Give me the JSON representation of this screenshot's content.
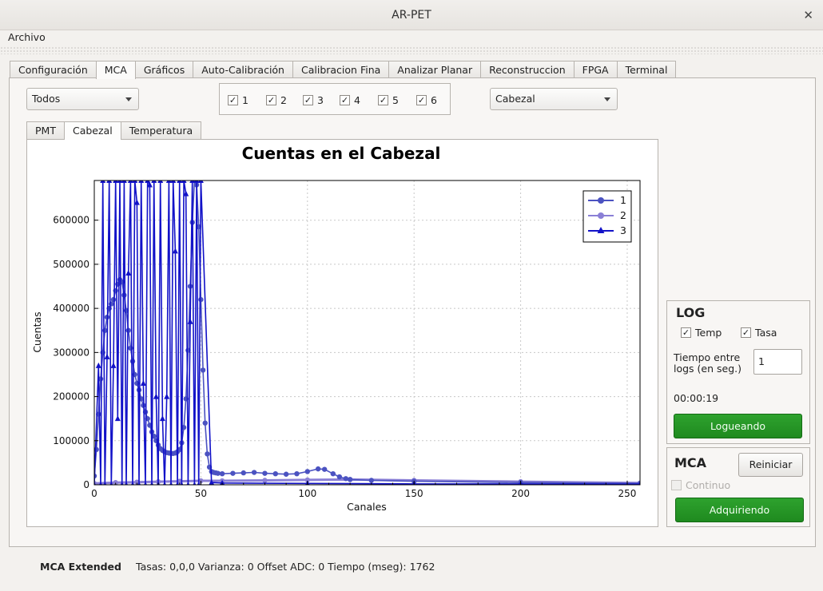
{
  "window": {
    "title": "AR-PET"
  },
  "menu": {
    "archivo": "Archivo"
  },
  "tabs": [
    "Configuración",
    "MCA",
    "Gráficos",
    "Auto-Calibración",
    "Calibracion Fina",
    "Analizar Planar",
    "Reconstruccion",
    "FPGA",
    "Terminal"
  ],
  "active_tab": "MCA",
  "controls": {
    "combo_left": "Todos",
    "combo_right": "Cabezal",
    "checks": [
      {
        "label": "1",
        "checked": true
      },
      {
        "label": "2",
        "checked": true
      },
      {
        "label": "3",
        "checked": true
      },
      {
        "label": "4",
        "checked": true
      },
      {
        "label": "5",
        "checked": true
      },
      {
        "label": "6",
        "checked": true
      }
    ]
  },
  "subtabs": [
    "PMT",
    "Cabezal",
    "Temperatura"
  ],
  "active_subtab": "Cabezal",
  "log": {
    "title": "LOG",
    "temp_label": "Temp",
    "tasa_label": "Tasa",
    "interval_label_line1": "Tiempo entre",
    "interval_label_line2": "logs (en seg.)",
    "interval_value": "1",
    "elapsed": "00:00:19",
    "button": "Logueando"
  },
  "mca": {
    "title": "MCA",
    "reset_button": "Reiniciar",
    "continuo_label": "Continuo",
    "acquire_button": "Adquiriendo"
  },
  "status": {
    "label": "MCA Extended",
    "text": "Tasas: 0,0,0 Varianza: 0 Offset ADC: 0 Tiempo (mseg): 1762"
  },
  "icons": {
    "close": "close-icon",
    "dropdown": "chevron-down-icon",
    "check": "checkmark-icon"
  },
  "colors": {
    "series1": "#4b52c1",
    "series2": "#8a7fd6",
    "series3": "#1212c8",
    "green_button": "#22922a"
  },
  "chart_data": {
    "type": "line",
    "title": "Cuentas en el Cabezal",
    "xlabel": "Canales",
    "ylabel": "Cuentas",
    "xlim": [
      0,
      256
    ],
    "ylim": [
      0,
      690000
    ],
    "x_ticks": [
      0,
      50,
      100,
      150,
      200,
      250
    ],
    "y_ticks": [
      0,
      100000,
      200000,
      300000,
      400000,
      500000,
      600000
    ],
    "grid": true,
    "legend": "top-right",
    "series": [
      {
        "name": "1",
        "marker": "circle",
        "x": [
          0,
          1,
          2,
          3,
          4,
          5,
          6,
          7,
          8,
          9,
          10,
          11,
          12,
          13,
          14,
          15,
          16,
          17,
          18,
          19,
          20,
          21,
          22,
          23,
          24,
          25,
          26,
          27,
          28,
          29,
          30,
          31,
          32,
          33,
          34,
          35,
          36,
          37,
          38,
          39,
          40,
          41,
          42,
          43,
          44,
          45,
          46,
          47,
          48,
          49,
          50,
          51,
          52,
          53,
          54,
          55,
          56,
          57,
          58,
          60,
          65,
          70,
          75,
          80,
          85,
          90,
          95,
          100,
          105,
          108,
          112,
          115,
          118,
          120,
          130,
          150,
          200,
          256
        ],
        "y": [
          20000,
          80000,
          160000,
          240000,
          300000,
          350000,
          380000,
          400000,
          410000,
          420000,
          440000,
          455000,
          465000,
          460000,
          430000,
          395000,
          350000,
          310000,
          280000,
          250000,
          230000,
          215000,
          195000,
          180000,
          165000,
          150000,
          135000,
          120000,
          110000,
          100000,
          90000,
          82000,
          78000,
          75000,
          73000,
          72000,
          71000,
          71000,
          72000,
          75000,
          80000,
          95000,
          130000,
          195000,
          305000,
          450000,
          595000,
          690000,
          680000,
          585000,
          420000,
          260000,
          140000,
          70000,
          40000,
          30000,
          28000,
          27000,
          26000,
          25000,
          26000,
          27000,
          28000,
          26000,
          25000,
          24000,
          25000,
          30000,
          36000,
          35000,
          25000,
          18000,
          14000,
          12000,
          10000,
          8000,
          5000,
          3000
        ]
      },
      {
        "name": "2",
        "marker": "circle",
        "x": [
          0,
          10,
          20,
          30,
          40,
          50,
          60,
          80,
          100,
          120,
          150,
          200,
          256
        ],
        "y": [
          3000,
          5000,
          6000,
          7000,
          8000,
          9000,
          9000,
          10000,
          11000,
          12000,
          10000,
          7000,
          4000
        ]
      },
      {
        "name": "3",
        "marker": "triangle",
        "x": [
          0,
          2,
          3,
          4,
          5,
          6,
          7,
          8,
          9,
          10,
          11,
          12,
          13,
          14,
          15,
          16,
          17,
          18,
          19,
          20,
          21,
          22,
          23,
          24,
          25,
          26,
          27,
          28,
          29,
          30,
          31,
          32,
          33,
          34,
          35,
          36,
          37,
          38,
          39,
          40,
          41,
          42,
          43,
          44,
          45,
          46,
          47,
          48,
          49,
          50,
          55,
          60,
          100,
          150,
          200,
          256
        ],
        "y": [
          0,
          270000,
          0,
          690000,
          0,
          290000,
          690000,
          0,
          270000,
          690000,
          150000,
          690000,
          0,
          690000,
          0,
          480000,
          690000,
          0,
          690000,
          640000,
          0,
          690000,
          230000,
          0,
          690000,
          680000,
          0,
          690000,
          200000,
          0,
          690000,
          150000,
          0,
          200000,
          690000,
          0,
          690000,
          530000,
          0,
          690000,
          0,
          690000,
          660000,
          0,
          370000,
          690000,
          0,
          690000,
          0,
          690000,
          5000,
          4000,
          3000,
          2000,
          2000,
          1500
        ]
      }
    ]
  }
}
